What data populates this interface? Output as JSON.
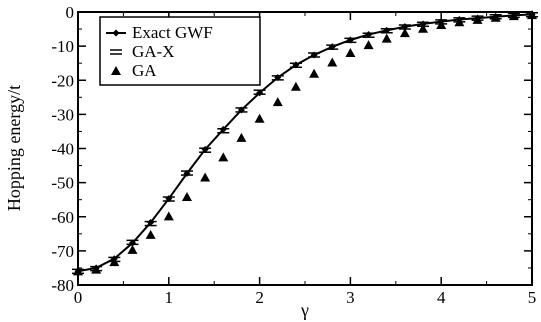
{
  "chart_data": {
    "type": "line",
    "xlabel": "γ",
    "ylabel": "Hopping energy/t",
    "xlim": [
      0,
      5
    ],
    "ylim": [
      -80,
      0
    ],
    "x_ticks": [
      "0",
      "1",
      "2",
      "3",
      "4",
      "5"
    ],
    "y_ticks": [
      "0",
      "-10",
      "-20",
      "-30",
      "-40",
      "-50",
      "-60",
      "-70",
      "-80"
    ],
    "legend_position": "top-left",
    "grid": false,
    "series": [
      {
        "name": "Exact GWF",
        "style": "line",
        "color": "#000000",
        "x": [
          0,
          0.2,
          0.4,
          0.6,
          0.8,
          1.0,
          1.2,
          1.4,
          1.6,
          1.8,
          2.0,
          2.2,
          2.4,
          2.6,
          2.8,
          3.0,
          3.2,
          3.4,
          3.6,
          3.8,
          4.0,
          4.2,
          4.4,
          4.6,
          4.8,
          5.0
        ],
        "y": [
          -76.0,
          -75.0,
          -72.3,
          -67.7,
          -61.7,
          -54.7,
          -47.3,
          -40.3,
          -34.4,
          -28.7,
          -23.7,
          -19.2,
          -15.5,
          -12.6,
          -10.2,
          -8.2,
          -6.6,
          -5.4,
          -4.3,
          -3.5,
          -2.8,
          -2.2,
          -1.8,
          -1.4,
          -1.0,
          -0.7
        ]
      },
      {
        "name": "GA-X",
        "style": "errorbar",
        "color": "#000000",
        "x": [
          0,
          0.2,
          0.4,
          0.6,
          0.8,
          1.0,
          1.2,
          1.4,
          1.6,
          1.8,
          2.0,
          2.2,
          2.4,
          2.6,
          2.8,
          3.0,
          3.2,
          3.4,
          3.6,
          3.8,
          4.0,
          4.2,
          4.4,
          4.6,
          4.8,
          5.0
        ],
        "y": [
          -76.0,
          -75.2,
          -72.5,
          -67.5,
          -62.0,
          -54.8,
          -47.2,
          -40.5,
          -34.8,
          -28.7,
          -23.5,
          -19.3,
          -15.6,
          -12.6,
          -10.3,
          -8.3,
          -6.8,
          -5.5,
          -4.4,
          -3.6,
          -2.9,
          -2.3,
          -1.8,
          -1.4,
          -1.0,
          -0.8
        ]
      },
      {
        "name": "GA",
        "style": "triangle",
        "color": "#000000",
        "x": [
          0,
          0.2,
          0.4,
          0.6,
          0.8,
          1.0,
          1.2,
          1.4,
          1.6,
          1.8,
          2.0,
          2.2,
          2.4,
          2.6,
          2.8,
          3.0,
          3.2,
          3.4,
          3.6,
          3.8,
          4.0,
          4.2,
          4.4,
          4.6,
          4.8,
          5.0
        ],
        "y": [
          -76.0,
          -75.5,
          -73.3,
          -69.7,
          -65.3,
          -59.9,
          -54.2,
          -48.5,
          -42.6,
          -36.9,
          -31.3,
          -26.4,
          -21.9,
          -18.1,
          -14.8,
          -12.0,
          -9.7,
          -7.8,
          -6.2,
          -4.9,
          -3.8,
          -3.0,
          -2.3,
          -1.7,
          -1.2,
          -0.9
        ]
      }
    ]
  }
}
